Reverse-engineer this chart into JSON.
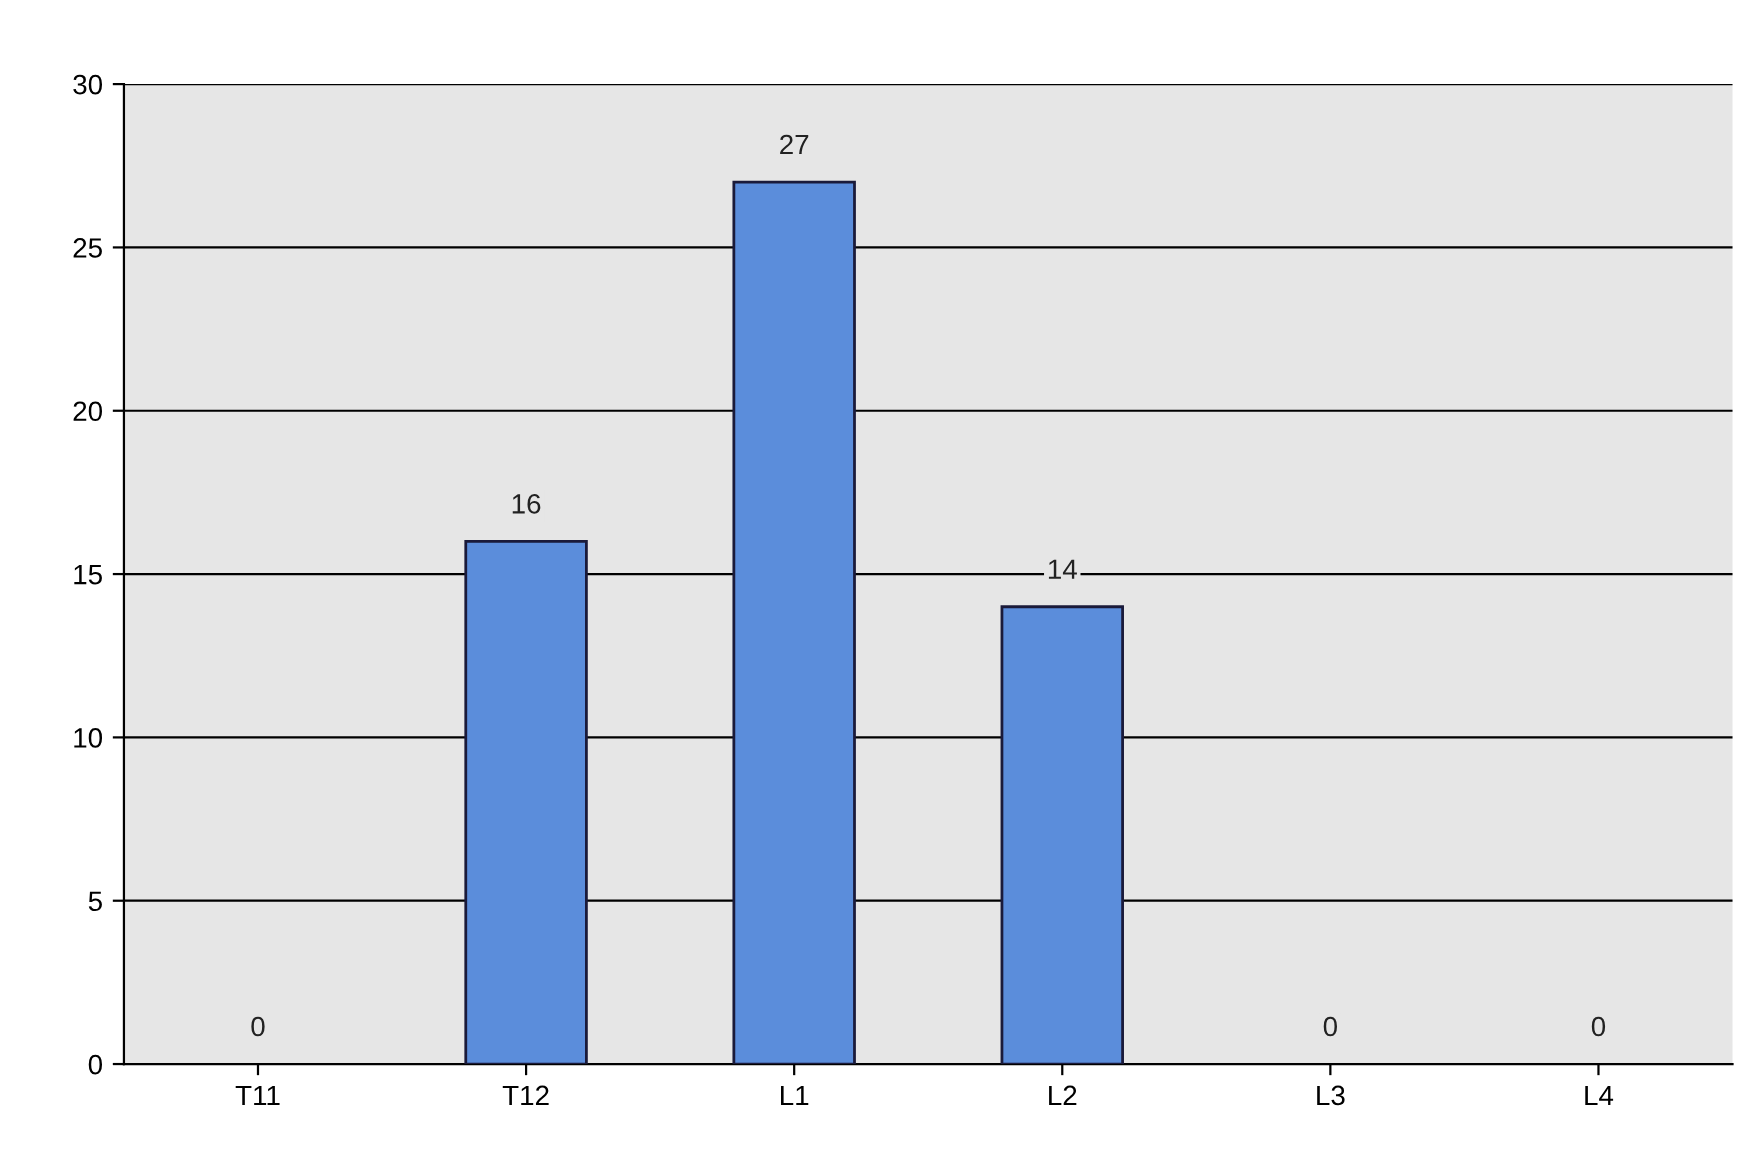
{
  "chart_data": {
    "type": "bar",
    "categories": [
      "T11",
      "T12",
      "L1",
      "L2",
      "L3",
      "L4"
    ],
    "values": [
      0,
      16,
      27,
      14,
      0,
      0
    ],
    "color": "#5b8ddb",
    "ylim": [
      0,
      30
    ],
    "yticks": [
      0,
      5,
      10,
      15,
      20,
      25,
      30
    ],
    "grid": "y",
    "data_labels": true
  }
}
